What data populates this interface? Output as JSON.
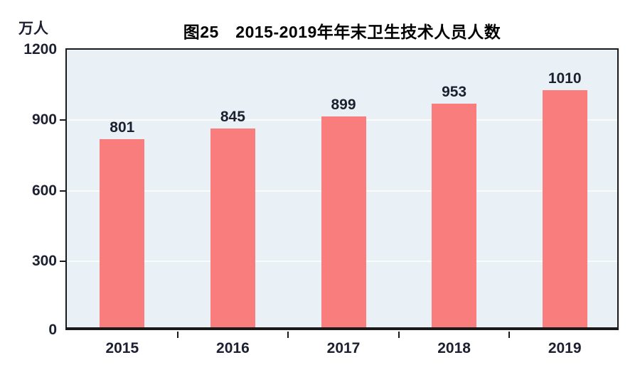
{
  "chart_data": {
    "type": "bar",
    "title": "图25　2015-2019年年末卫生技术人员人数",
    "unit_label": "万人",
    "categories": [
      "2015",
      "2016",
      "2017",
      "2018",
      "2019"
    ],
    "values": [
      801,
      845,
      899,
      953,
      1010
    ],
    "xlabel": "",
    "ylabel": "万人",
    "ylim": [
      0,
      1200
    ],
    "yticks": [
      0,
      300,
      600,
      900,
      1200
    ],
    "grid": "horizontal gridlines at 300/600/900",
    "legend_position": "none",
    "colors": {
      "bar": "#f97d7d",
      "plot_background": "#eaf1f6",
      "gridline": "#fbfcf7",
      "axis": "#1a1a1a",
      "text": "#1c2030"
    }
  }
}
